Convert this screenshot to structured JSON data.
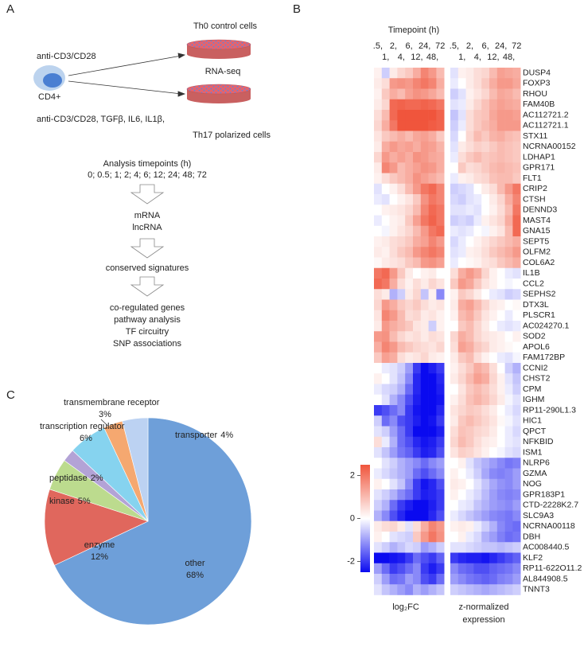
{
  "panel_a": {
    "label": "A",
    "treatment_1": "anti-CD3/CD28",
    "cell": "CD4+",
    "th0": "Th0 control cells",
    "assay": "RNA-seq",
    "treatment_2": "anti-CD3/CD28, TGFβ, IL6, IL1β,",
    "th17": "Th17 polarized cells",
    "timepoints_title": "Analysis timepoints (h)",
    "timepoints": "0; 0.5; 1; 2; 4; 6; 12; 24; 48; 72",
    "step_1": [
      "mRNA",
      "lncRNA"
    ],
    "step_2": [
      "conserved signatures"
    ],
    "step_3": [
      "co-regulated genes",
      "pathway analysis",
      "TF circuitry",
      "SNP associations"
    ]
  },
  "panel_b": {
    "label": "B",
    "title": "Timepoint (h)",
    "column_labels": [
      ".5,",
      "1,",
      "2,",
      "4,",
      "6,",
      "12,",
      "24,",
      "48,",
      "72"
    ],
    "block_labels": {
      "log2fc": "log₂FC",
      "znorm": [
        "z-normalized",
        "expression"
      ]
    },
    "color_scale": {
      "lim": [
        -2.5,
        2.5
      ],
      "ticks": [
        2,
        0,
        -2
      ],
      "colors": [
        "#0a0af0",
        "#ffffff",
        "#f0553c"
      ]
    },
    "genes": [
      "DUSP4",
      "FOXP3",
      "RHOU",
      "FAM40B",
      "AC112721.2",
      "AC112721.1",
      "STX11",
      "NCRNA00152",
      "LDHAP1",
      "GPR171",
      "FLT1",
      "CRIP2",
      "CTSH",
      "DENND3",
      "MAST4",
      "GNA15",
      "SEPT5",
      "OLFM2",
      "COL6A2",
      "IL1B",
      "CCL2",
      "SEPHS2",
      "DTX3L",
      "PLSCR1",
      "AC024270.1",
      "SOD2",
      "APOL6",
      "FAM172BP",
      "CCNI2",
      "CHST2",
      "CPM",
      "IGHM",
      "RP11-290L1.3",
      "HIC1",
      "QPCT",
      "NFKBID",
      "ISM1",
      "NLRP6",
      "GZMA",
      "NOG",
      "GPR183P1",
      "CTD-2228K2.7",
      "SLC9A3",
      "NCRNA00118",
      "DBH",
      "AC008440.5",
      "KLF2",
      "RP11-622O11.2",
      "AL844908.5",
      "TNNT3"
    ],
    "log2fc": [
      [
        0.2,
        -0.5,
        0.3,
        0.6,
        0.8,
        1.2,
        1.8,
        1.5,
        1.0
      ],
      [
        0.3,
        0.5,
        1.5,
        1.6,
        1.5,
        1.8,
        2.0,
        1.8,
        1.2
      ],
      [
        0.2,
        0.8,
        1.2,
        1.0,
        1.4,
        1.6,
        1.5,
        1.3,
        1.0
      ],
      [
        0.3,
        0.6,
        2.2,
        2.3,
        2.2,
        2.2,
        2.3,
        2.2,
        2.0
      ],
      [
        0.5,
        1.0,
        2.2,
        2.5,
        2.5,
        2.5,
        2.5,
        2.5,
        2.3
      ],
      [
        0.6,
        1.2,
        2.0,
        2.5,
        2.5,
        2.5,
        2.5,
        2.4,
        2.3
      ],
      [
        0.4,
        0.8,
        1.0,
        1.2,
        1.0,
        1.3,
        1.4,
        1.2,
        0.8
      ],
      [
        0.3,
        1.2,
        1.5,
        1.3,
        1.4,
        1.2,
        1.5,
        1.4,
        1.1
      ],
      [
        0.6,
        1.5,
        1.2,
        1.4,
        1.2,
        1.6,
        1.5,
        1.3,
        1.2
      ],
      [
        0.3,
        1.8,
        1.5,
        1.0,
        1.2,
        1.4,
        1.6,
        1.5,
        1.2
      ],
      [
        0.2,
        0.5,
        0.8,
        1.0,
        1.2,
        1.6,
        1.4,
        1.2,
        1.0
      ],
      [
        -0.3,
        0.0,
        0.2,
        0.5,
        1.0,
        1.5,
        2.0,
        2.2,
        1.8
      ],
      [
        -0.2,
        -0.3,
        0.0,
        0.2,
        0.4,
        0.8,
        1.6,
        2.0,
        1.8
      ],
      [
        0.0,
        0.2,
        0.3,
        0.4,
        0.6,
        1.0,
        1.8,
        2.2,
        2.0
      ],
      [
        -0.2,
        0.0,
        0.2,
        0.3,
        0.8,
        1.4,
        2.0,
        2.3,
        2.0
      ],
      [
        0.0,
        -0.1,
        0.2,
        0.4,
        0.6,
        1.0,
        1.5,
        2.0,
        2.2
      ],
      [
        0.2,
        0.3,
        0.5,
        0.6,
        0.8,
        1.2,
        1.4,
        1.8,
        1.5
      ],
      [
        0.3,
        0.2,
        0.5,
        0.8,
        1.0,
        1.5,
        1.8,
        2.0,
        1.8
      ],
      [
        0.1,
        0.3,
        0.4,
        0.5,
        0.8,
        1.0,
        1.5,
        1.6,
        1.4
      ],
      [
        2.0,
        2.2,
        1.5,
        0.8,
        0.3,
        0.0,
        0.2,
        0.3,
        0.0
      ],
      [
        2.2,
        2.0,
        1.2,
        0.5,
        0.2,
        0.5,
        0.3,
        0.6,
        0.4
      ],
      [
        0.5,
        0.3,
        -0.8,
        -0.5,
        0.3,
        0.6,
        -0.6,
        0.2,
        -1.2
      ],
      [
        0.6,
        1.5,
        1.2,
        0.8,
        0.6,
        0.8,
        0.5,
        0.3,
        0.4
      ],
      [
        0.4,
        1.8,
        1.5,
        1.0,
        0.5,
        0.6,
        0.3,
        0.4,
        0.2
      ],
      [
        0.3,
        1.5,
        1.2,
        1.0,
        0.8,
        0.4,
        0.3,
        -0.5,
        0.2
      ],
      [
        1.5,
        1.6,
        1.0,
        0.6,
        0.4,
        0.5,
        0.3,
        0.5,
        0.4
      ],
      [
        1.2,
        1.8,
        1.5,
        1.0,
        0.8,
        0.6,
        0.5,
        0.4,
        0.6
      ],
      [
        0.8,
        1.4,
        1.2,
        0.5,
        0.3,
        0.4,
        0.6,
        0.3,
        0.2
      ],
      [
        0.0,
        -0.2,
        -0.3,
        -0.5,
        -1.0,
        -2.0,
        -2.5,
        -2.3,
        -2.0
      ],
      [
        0.2,
        0.0,
        -0.3,
        -0.6,
        -1.2,
        -2.2,
        -2.5,
        -2.5,
        -2.2
      ],
      [
        -0.2,
        -0.4,
        -0.5,
        -0.8,
        -1.5,
        -2.2,
        -2.5,
        -2.5,
        -2.3
      ],
      [
        0.0,
        -0.3,
        -0.8,
        -1.2,
        -1.8,
        -2.3,
        -2.5,
        -2.5,
        -2.4
      ],
      [
        -2.0,
        -1.8,
        -1.5,
        -1.2,
        -2.0,
        -2.4,
        -2.5,
        -2.5,
        -2.2
      ],
      [
        -0.5,
        -1.5,
        -1.2,
        -1.8,
        -2.0,
        -2.3,
        -2.5,
        -2.4,
        -2.0
      ],
      [
        -0.3,
        -0.5,
        -1.0,
        -1.5,
        -2.0,
        -2.5,
        -2.5,
        -2.5,
        -2.3
      ],
      [
        0.5,
        -0.2,
        -0.8,
        -1.5,
        -1.8,
        -2.2,
        -2.4,
        -2.3,
        -2.0
      ],
      [
        -0.3,
        -0.6,
        -1.0,
        -1.4,
        -1.6,
        -2.0,
        -2.3,
        -2.2,
        -1.8
      ],
      [
        0.0,
        -0.3,
        -0.5,
        -0.8,
        -1.0,
        -1.2,
        -1.5,
        -1.2,
        -1.0
      ],
      [
        -0.2,
        -0.4,
        -0.6,
        -0.8,
        -1.0,
        -1.5,
        -1.8,
        -1.5,
        -1.2
      ],
      [
        0.2,
        0.0,
        -0.3,
        -0.6,
        -1.2,
        -2.0,
        -2.4,
        -2.2,
        -1.8
      ],
      [
        -0.3,
        -0.5,
        -0.8,
        -1.2,
        -1.5,
        -2.0,
        -2.3,
        -2.2,
        -2.0
      ],
      [
        -0.5,
        -0.8,
        -1.5,
        -2.0,
        -2.3,
        -2.5,
        -2.5,
        -2.3,
        -2.0
      ],
      [
        -0.8,
        -1.2,
        -1.8,
        -2.2,
        -2.5,
        -2.5,
        -2.5,
        -2.2,
        -1.8
      ],
      [
        0.3,
        0.5,
        0.6,
        0.3,
        -0.3,
        0.5,
        1.2,
        1.8,
        1.5
      ],
      [
        0.2,
        0.0,
        -0.3,
        -0.4,
        -0.5,
        0.8,
        1.5,
        2.0,
        1.6
      ],
      [
        -0.3,
        -0.5,
        -0.8,
        -0.6,
        -0.4,
        -0.5,
        -1.0,
        -0.8,
        -0.5
      ],
      [
        -2.5,
        -2.5,
        -2.4,
        -2.3,
        -2.0,
        -1.5,
        -1.8,
        -2.0,
        -1.6
      ],
      [
        -1.0,
        -1.5,
        -2.0,
        -1.8,
        -1.5,
        -1.2,
        -2.0,
        -2.3,
        -2.0
      ],
      [
        -0.5,
        -1.0,
        -1.5,
        -1.4,
        -1.0,
        -1.2,
        -1.8,
        -2.0,
        -1.5
      ],
      [
        -0.3,
        -0.6,
        -0.8,
        -1.0,
        -1.2,
        -0.8,
        -1.0,
        -0.8,
        -0.6
      ]
    ],
    "znorm": [
      [
        -0.3,
        0.2,
        0.3,
        0.5,
        0.6,
        1.0,
        1.4,
        1.3,
        1.2
      ],
      [
        -0.2,
        0.0,
        0.3,
        0.5,
        0.8,
        1.2,
        1.5,
        1.5,
        1.3
      ],
      [
        -0.5,
        -0.3,
        0.2,
        0.4,
        0.6,
        1.0,
        1.3,
        1.2,
        1.0
      ],
      [
        -0.3,
        -0.2,
        0.3,
        0.6,
        0.9,
        1.2,
        1.4,
        1.3,
        1.2
      ],
      [
        -0.6,
        -0.3,
        0.5,
        0.8,
        0.9,
        1.3,
        1.5,
        1.5,
        1.4
      ],
      [
        -0.5,
        -0.2,
        0.5,
        0.8,
        1.0,
        1.2,
        1.5,
        1.5,
        1.5
      ],
      [
        -0.4,
        0.0,
        0.6,
        1.0,
        0.8,
        1.1,
        1.2,
        1.0,
        0.9
      ],
      [
        -0.3,
        0.3,
        0.5,
        0.7,
        0.6,
        0.8,
        1.0,
        0.9,
        0.8
      ],
      [
        -0.2,
        0.5,
        0.8,
        1.0,
        0.8,
        0.9,
        1.0,
        0.9,
        0.8
      ],
      [
        0.0,
        0.8,
        0.5,
        0.6,
        0.8,
        1.0,
        1.1,
        1.0,
        0.9
      ],
      [
        -0.2,
        0.2,
        0.3,
        0.5,
        0.6,
        0.9,
        1.0,
        1.0,
        0.8
      ],
      [
        -0.5,
        -0.4,
        -0.3,
        0.0,
        0.3,
        0.5,
        1.0,
        1.5,
        2.0
      ],
      [
        -0.4,
        -0.5,
        -0.3,
        -0.2,
        0.0,
        0.3,
        0.6,
        1.2,
        1.8
      ],
      [
        -0.3,
        -0.3,
        -0.2,
        -0.3,
        0.0,
        0.2,
        0.5,
        1.0,
        2.0
      ],
      [
        -0.5,
        -0.4,
        -0.5,
        -0.2,
        0.2,
        0.4,
        0.6,
        1.2,
        2.2
      ],
      [
        -0.2,
        -0.3,
        -0.2,
        0.0,
        -0.1,
        0.2,
        0.4,
        1.0,
        2.2
      ],
      [
        -0.4,
        -0.2,
        0.0,
        0.2,
        0.4,
        0.6,
        0.8,
        1.0,
        1.2
      ],
      [
        -0.3,
        -0.2,
        0.2,
        0.3,
        0.5,
        0.8,
        1.0,
        1.2,
        1.5
      ],
      [
        -0.2,
        0.0,
        0.1,
        0.2,
        0.4,
        0.5,
        0.8,
        1.0,
        1.2
      ],
      [
        0.5,
        1.2,
        1.5,
        1.2,
        0.6,
        0.2,
        0.0,
        -0.2,
        -0.3
      ],
      [
        0.8,
        1.5,
        1.3,
        0.8,
        0.4,
        0.2,
        0.0,
        -0.1,
        0.0
      ],
      [
        0.2,
        0.8,
        0.6,
        0.3,
        0.0,
        -0.2,
        -0.3,
        -0.5,
        -0.4
      ],
      [
        0.3,
        1.2,
        1.4,
        1.0,
        0.6,
        0.3,
        0.2,
        0.0,
        0.1
      ],
      [
        0.2,
        1.0,
        1.2,
        0.8,
        0.4,
        0.2,
        0.0,
        -0.2,
        0.0
      ],
      [
        0.0,
        0.8,
        1.0,
        0.6,
        0.3,
        0.0,
        -0.2,
        -0.3,
        -0.2
      ],
      [
        0.6,
        1.2,
        1.0,
        0.6,
        0.4,
        0.3,
        0.2,
        0.0,
        0.2
      ],
      [
        0.5,
        1.4,
        1.2,
        0.8,
        0.6,
        0.3,
        0.2,
        0.1,
        0.0
      ],
      [
        0.3,
        0.8,
        1.0,
        0.5,
        0.2,
        0.0,
        -0.2,
        -0.3,
        -0.1
      ],
      [
        0.2,
        0.5,
        0.8,
        1.2,
        1.0,
        0.5,
        0.0,
        -0.5,
        -0.8
      ],
      [
        0.3,
        0.6,
        1.0,
        1.4,
        1.2,
        0.6,
        0.2,
        -0.3,
        -0.6
      ],
      [
        0.0,
        0.4,
        0.8,
        1.0,
        0.8,
        0.5,
        0.2,
        -0.2,
        -0.5
      ],
      [
        0.2,
        0.5,
        0.9,
        1.1,
        0.9,
        0.6,
        0.3,
        -0.1,
        -0.3
      ],
      [
        0.4,
        0.6,
        0.8,
        0.7,
        0.5,
        0.3,
        0.0,
        -0.2,
        -0.4
      ],
      [
        0.3,
        0.8,
        1.0,
        0.8,
        0.6,
        0.4,
        0.1,
        -0.1,
        -0.3
      ],
      [
        0.5,
        0.9,
        0.8,
        0.6,
        0.5,
        0.3,
        0.0,
        -0.2,
        -0.4
      ],
      [
        0.6,
        1.0,
        0.8,
        0.5,
        0.3,
        0.2,
        0.0,
        -0.2,
        -0.3
      ],
      [
        0.4,
        0.7,
        0.6,
        0.4,
        0.2,
        0.0,
        -0.1,
        -0.3,
        -0.4
      ],
      [
        0.0,
        0.2,
        -0.3,
        -0.6,
        -0.8,
        -1.0,
        -1.2,
        -1.4,
        -1.3
      ],
      [
        0.2,
        0.0,
        -0.2,
        -0.5,
        -0.9,
        -1.2,
        -1.3,
        -1.2,
        -1.0
      ],
      [
        0.3,
        0.2,
        0.0,
        -0.3,
        -0.6,
        -0.9,
        -1.1,
        -1.2,
        -1.0
      ],
      [
        0.2,
        0.0,
        -0.2,
        -0.4,
        -0.7,
        -1.0,
        -1.2,
        -1.3,
        -1.2
      ],
      [
        0.0,
        -0.2,
        -0.3,
        -0.6,
        -0.8,
        -1.0,
        -1.1,
        -1.2,
        -1.0
      ],
      [
        -0.2,
        -0.4,
        -0.6,
        -0.8,
        -1.0,
        -1.2,
        -1.3,
        -1.4,
        -1.2
      ],
      [
        0.2,
        0.3,
        0.2,
        -0.2,
        -0.5,
        -0.8,
        -1.2,
        -1.4,
        -1.5
      ],
      [
        0.0,
        0.2,
        -0.2,
        -0.4,
        -0.8,
        -1.0,
        -1.3,
        -1.5,
        -1.4
      ],
      [
        -0.3,
        -0.3,
        -0.4,
        -0.5,
        -0.6,
        -0.6,
        -0.7,
        -0.6,
        -0.5
      ],
      [
        -2.0,
        -2.2,
        -2.3,
        -2.3,
        -2.4,
        -2.2,
        -2.0,
        -1.8,
        -1.6
      ],
      [
        -1.2,
        -1.5,
        -1.6,
        -1.8,
        -1.8,
        -1.6,
        -1.5,
        -1.4,
        -1.2
      ],
      [
        -1.0,
        -1.2,
        -1.4,
        -1.5,
        -1.6,
        -1.5,
        -1.3,
        -1.2,
        -1.0
      ],
      [
        -0.5,
        -0.6,
        -0.7,
        -0.8,
        -0.9,
        -0.8,
        -0.7,
        -0.6,
        -0.5
      ]
    ]
  },
  "panel_c": {
    "label": "C",
    "chart_data": {
      "type": "pie",
      "categories": [
        "other",
        "enzyme",
        "kinase",
        "peptidase",
        "transcription regulator",
        "transmembrane receptor",
        "transporter"
      ],
      "values": [
        68,
        12,
        5,
        2,
        6,
        3,
        4
      ],
      "value_labels": [
        "68%",
        "12%",
        "5%",
        "2%",
        "6%",
        "3%",
        "4%"
      ],
      "colors": [
        "#6e9fd9",
        "#e0675d",
        "#bcdb8e",
        "#b3a3d6",
        "#86d3ef",
        "#f5a870",
        "#bcd2f2"
      ]
    }
  }
}
